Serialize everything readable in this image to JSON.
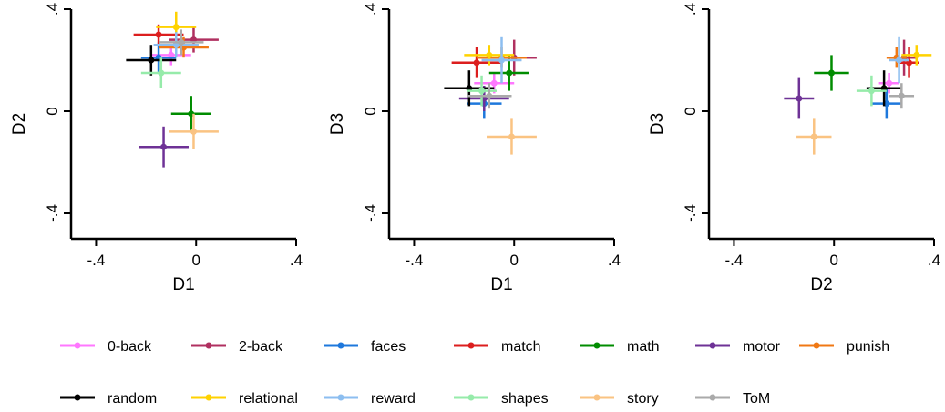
{
  "chart_data": [
    {
      "type": "scatter",
      "xlabel": "D1",
      "ylabel": "D2",
      "xlim": [
        -0.5,
        0.4
      ],
      "ylim": [
        -0.5,
        0.4
      ],
      "xticks": [
        -0.4,
        0,
        0.4
      ],
      "yticks": [
        -0.4,
        0,
        0.4
      ],
      "xtick_labels": [
        "-.4",
        "0",
        ".4"
      ],
      "ytick_labels": [
        "-.4",
        "0",
        ".4"
      ],
      "series": [
        {
          "name": "0-back",
          "x": -0.1,
          "y": 0.22,
          "xerr": 0.08,
          "yerr": 0.04
        },
        {
          "name": "2-back",
          "x": -0.01,
          "y": 0.28,
          "xerr": 0.1,
          "yerr": 0.05
        },
        {
          "name": "faces",
          "x": -0.15,
          "y": 0.21,
          "xerr": 0.07,
          "yerr": 0.06
        },
        {
          "name": "match",
          "x": -0.15,
          "y": 0.3,
          "xerr": 0.1,
          "yerr": 0.04
        },
        {
          "name": "math",
          "x": -0.02,
          "y": -0.01,
          "xerr": 0.08,
          "yerr": 0.07
        },
        {
          "name": "motor",
          "x": -0.13,
          "y": -0.14,
          "xerr": 0.1,
          "yerr": 0.08
        },
        {
          "name": "punish",
          "x": -0.05,
          "y": 0.25,
          "xerr": 0.1,
          "yerr": 0.04
        },
        {
          "name": "random",
          "x": -0.18,
          "y": 0.2,
          "xerr": 0.1,
          "yerr": 0.06
        },
        {
          "name": "relational",
          "x": -0.08,
          "y": 0.33,
          "xerr": 0.08,
          "yerr": 0.06
        },
        {
          "name": "reward",
          "x": -0.08,
          "y": 0.26,
          "xerr": 0.09,
          "yerr": 0.05
        },
        {
          "name": "shapes",
          "x": -0.14,
          "y": 0.15,
          "xerr": 0.08,
          "yerr": 0.06
        },
        {
          "name": "story",
          "x": -0.01,
          "y": -0.08,
          "xerr": 0.1,
          "yerr": 0.07
        },
        {
          "name": "ToM",
          "x": -0.06,
          "y": 0.27,
          "xerr": 0.09,
          "yerr": 0.05
        }
      ]
    },
    {
      "type": "scatter",
      "xlabel": "D1",
      "ylabel": "D3",
      "xlim": [
        -0.5,
        0.4
      ],
      "ylim": [
        -0.5,
        0.4
      ],
      "xticks": [
        -0.4,
        0,
        0.4
      ],
      "yticks": [
        -0.4,
        0,
        0.4
      ],
      "xtick_labels": [
        "-.4",
        "0",
        ".4"
      ],
      "ytick_labels": [
        "-.4",
        "0",
        ".4"
      ],
      "series": [
        {
          "name": "0-back",
          "x": -0.08,
          "y": 0.11,
          "xerr": 0.08,
          "yerr": 0.04
        },
        {
          "name": "2-back",
          "x": 0.0,
          "y": 0.21,
          "xerr": 0.09,
          "yerr": 0.07
        },
        {
          "name": "faces",
          "x": -0.12,
          "y": 0.03,
          "xerr": 0.07,
          "yerr": 0.06
        },
        {
          "name": "match",
          "x": -0.15,
          "y": 0.19,
          "xerr": 0.1,
          "yerr": 0.06
        },
        {
          "name": "math",
          "x": -0.02,
          "y": 0.15,
          "xerr": 0.08,
          "yerr": 0.07
        },
        {
          "name": "motor",
          "x": -0.12,
          "y": 0.05,
          "xerr": 0.1,
          "yerr": 0.05
        },
        {
          "name": "punish",
          "x": -0.05,
          "y": 0.21,
          "xerr": 0.1,
          "yerr": 0.04
        },
        {
          "name": "random",
          "x": -0.18,
          "y": 0.09,
          "xerr": 0.1,
          "yerr": 0.07
        },
        {
          "name": "relational",
          "x": -0.1,
          "y": 0.22,
          "xerr": 0.1,
          "yerr": 0.04
        },
        {
          "name": "reward",
          "x": -0.05,
          "y": 0.2,
          "xerr": 0.08,
          "yerr": 0.09
        },
        {
          "name": "shapes",
          "x": -0.13,
          "y": 0.08,
          "xerr": 0.06,
          "yerr": 0.06
        },
        {
          "name": "story",
          "x": -0.01,
          "y": -0.1,
          "xerr": 0.1,
          "yerr": 0.07
        },
        {
          "name": "ToM",
          "x": -0.1,
          "y": 0.06,
          "xerr": 0.09,
          "yerr": 0.05
        }
      ]
    },
    {
      "type": "scatter",
      "xlabel": "D2",
      "ylabel": "D3",
      "xlim": [
        -0.5,
        0.4
      ],
      "ylim": [
        -0.5,
        0.4
      ],
      "xticks": [
        -0.4,
        0,
        0.4
      ],
      "yticks": [
        -0.4,
        0,
        0.4
      ],
      "xtick_labels": [
        "-.4",
        "0",
        ".4"
      ],
      "ytick_labels": [
        "-.4",
        "0",
        ".4"
      ],
      "series": [
        {
          "name": "0-back",
          "x": 0.22,
          "y": 0.11,
          "xerr": 0.04,
          "yerr": 0.04
        },
        {
          "name": "2-back",
          "x": 0.28,
          "y": 0.21,
          "xerr": 0.05,
          "yerr": 0.07
        },
        {
          "name": "faces",
          "x": 0.21,
          "y": 0.03,
          "xerr": 0.06,
          "yerr": 0.06
        },
        {
          "name": "match",
          "x": 0.3,
          "y": 0.19,
          "xerr": 0.04,
          "yerr": 0.06
        },
        {
          "name": "math",
          "x": -0.01,
          "y": 0.15,
          "xerr": 0.07,
          "yerr": 0.07
        },
        {
          "name": "motor",
          "x": -0.14,
          "y": 0.05,
          "xerr": 0.06,
          "yerr": 0.08
        },
        {
          "name": "punish",
          "x": 0.25,
          "y": 0.21,
          "xerr": 0.04,
          "yerr": 0.04
        },
        {
          "name": "random",
          "x": 0.2,
          "y": 0.09,
          "xerr": 0.07,
          "yerr": 0.07
        },
        {
          "name": "relational",
          "x": 0.33,
          "y": 0.22,
          "xerr": 0.06,
          "yerr": 0.04
        },
        {
          "name": "reward",
          "x": 0.26,
          "y": 0.2,
          "xerr": 0.04,
          "yerr": 0.09
        },
        {
          "name": "shapes",
          "x": 0.15,
          "y": 0.08,
          "xerr": 0.06,
          "yerr": 0.06
        },
        {
          "name": "story",
          "x": -0.08,
          "y": -0.1,
          "xerr": 0.07,
          "yerr": 0.07
        },
        {
          "name": "ToM",
          "x": 0.27,
          "y": 0.06,
          "xerr": 0.05,
          "yerr": 0.05
        }
      ]
    }
  ],
  "legend": {
    "placement": "bottom",
    "items": [
      {
        "label": "0-back",
        "color": "#ff77ff"
      },
      {
        "label": "2-back",
        "color": "#b03060"
      },
      {
        "label": "faces",
        "color": "#1e78dc"
      },
      {
        "label": "match",
        "color": "#dc1e1e"
      },
      {
        "label": "math",
        "color": "#008c00"
      },
      {
        "label": "motor",
        "color": "#6e3296"
      },
      {
        "label": "punish",
        "color": "#f07814"
      },
      {
        "label": "random",
        "color": "#000000"
      },
      {
        "label": "relational",
        "color": "#ffd200"
      },
      {
        "label": "reward",
        "color": "#8cbef0"
      },
      {
        "label": "shapes",
        "color": "#96ebaa"
      },
      {
        "label": "story",
        "color": "#fac382"
      },
      {
        "label": "ToM",
        "color": "#aaaaaa"
      }
    ]
  }
}
